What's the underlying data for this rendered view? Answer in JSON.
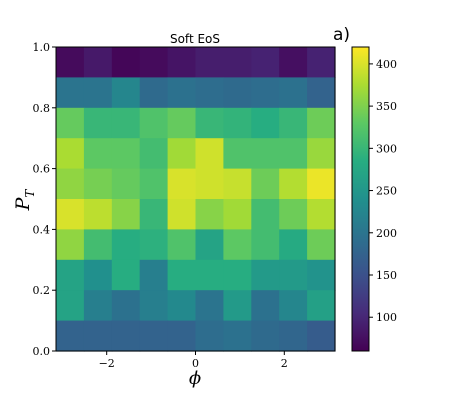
{
  "chart_data": {
    "type": "heatmap",
    "title": "Soft EoS",
    "panel_label": "a)",
    "xlabel": "ϕ",
    "ylabel_main": "P",
    "ylabel_sub": "T",
    "xlim": [
      -3.1416,
      3.1416
    ],
    "ylim": [
      0.0,
      1.0
    ],
    "x_ticks": [
      -2,
      0,
      2
    ],
    "x_tick_labels": [
      "−2",
      "0",
      "2"
    ],
    "y_ticks": [
      0.0,
      0.2,
      0.4,
      0.6,
      0.8,
      1.0
    ],
    "y_tick_labels": [
      "0.0",
      "0.2",
      "0.4",
      "0.6",
      "0.8",
      "1.0"
    ],
    "grid": false,
    "colormap": "viridis",
    "color_range": [
      60,
      420
    ],
    "colorbar_ticks": [
      100,
      150,
      200,
      250,
      300,
      350,
      400
    ],
    "colorbar_tick_labels": [
      "100",
      "150",
      "200",
      "250",
      "300",
      "350",
      "400"
    ],
    "n_x_bins": 10,
    "n_y_bins": 10,
    "row_order": "top-to-bottom (P_T from 1.0 down to 0.0)",
    "values": [
      [
        70,
        85,
        65,
        70,
        80,
        90,
        90,
        95,
        75,
        95
      ],
      [
        200,
        200,
        225,
        185,
        195,
        190,
        185,
        190,
        195,
        175
      ],
      [
        335,
        300,
        300,
        320,
        335,
        300,
        295,
        285,
        300,
        340
      ],
      [
        375,
        330,
        330,
        310,
        370,
        395,
        320,
        320,
        320,
        365
      ],
      [
        360,
        345,
        335,
        320,
        400,
        395,
        390,
        340,
        380,
        410
      ],
      [
        400,
        385,
        355,
        300,
        395,
        355,
        370,
        310,
        340,
        380
      ],
      [
        360,
        310,
        285,
        290,
        320,
        270,
        330,
        310,
        280,
        340
      ],
      [
        270,
        240,
        285,
        215,
        285,
        285,
        285,
        255,
        255,
        245
      ],
      [
        270,
        215,
        195,
        215,
        230,
        200,
        255,
        195,
        225,
        265
      ],
      [
        175,
        175,
        175,
        175,
        175,
        190,
        195,
        185,
        180,
        165
      ]
    ]
  }
}
